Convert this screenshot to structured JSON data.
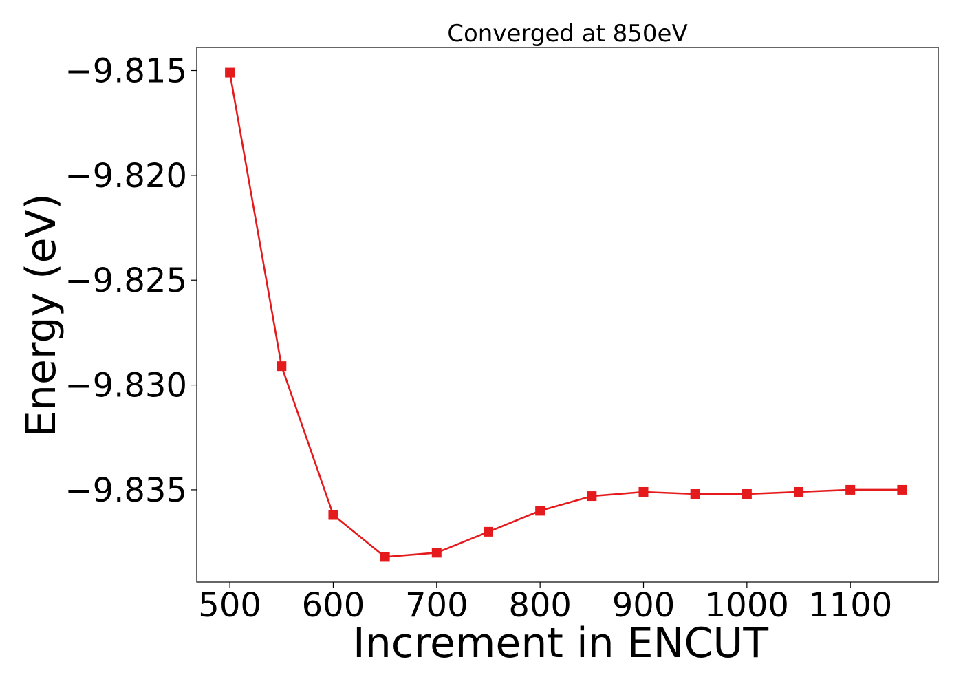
{
  "chart_data": {
    "type": "line",
    "title": "Converged at 850eV",
    "xlabel": "Increment in ENCUT",
    "ylabel": "Energy (eV)",
    "x": [
      500,
      550,
      600,
      650,
      700,
      750,
      800,
      850,
      900,
      950,
      1000,
      1050,
      1100,
      1150
    ],
    "series": [
      {
        "values": [
          -9.8151,
          -9.8291,
          -9.8362,
          -9.8382,
          -9.838,
          -9.837,
          -9.836,
          -9.8353,
          -9.8351,
          -9.8352,
          -9.8352,
          -9.8351,
          -9.835,
          -9.835
        ],
        "color": "#e41a1c",
        "marker": "square"
      }
    ],
    "xlim": [
      468,
      1185
    ],
    "ylim": [
      -9.8394,
      -9.8139
    ],
    "xticks": [
      500,
      600,
      700,
      800,
      900,
      1000,
      1100
    ],
    "xtick_labels": [
      "500",
      "600",
      "700",
      "800",
      "900",
      "1000",
      "1100"
    ],
    "yticks": [
      -9.815,
      -9.82,
      -9.825,
      -9.83,
      -9.835
    ],
    "ytick_labels": [
      "−9.815",
      "−9.820",
      "−9.825",
      "−9.830",
      "−9.835"
    ],
    "grid": false,
    "legend": "none"
  }
}
